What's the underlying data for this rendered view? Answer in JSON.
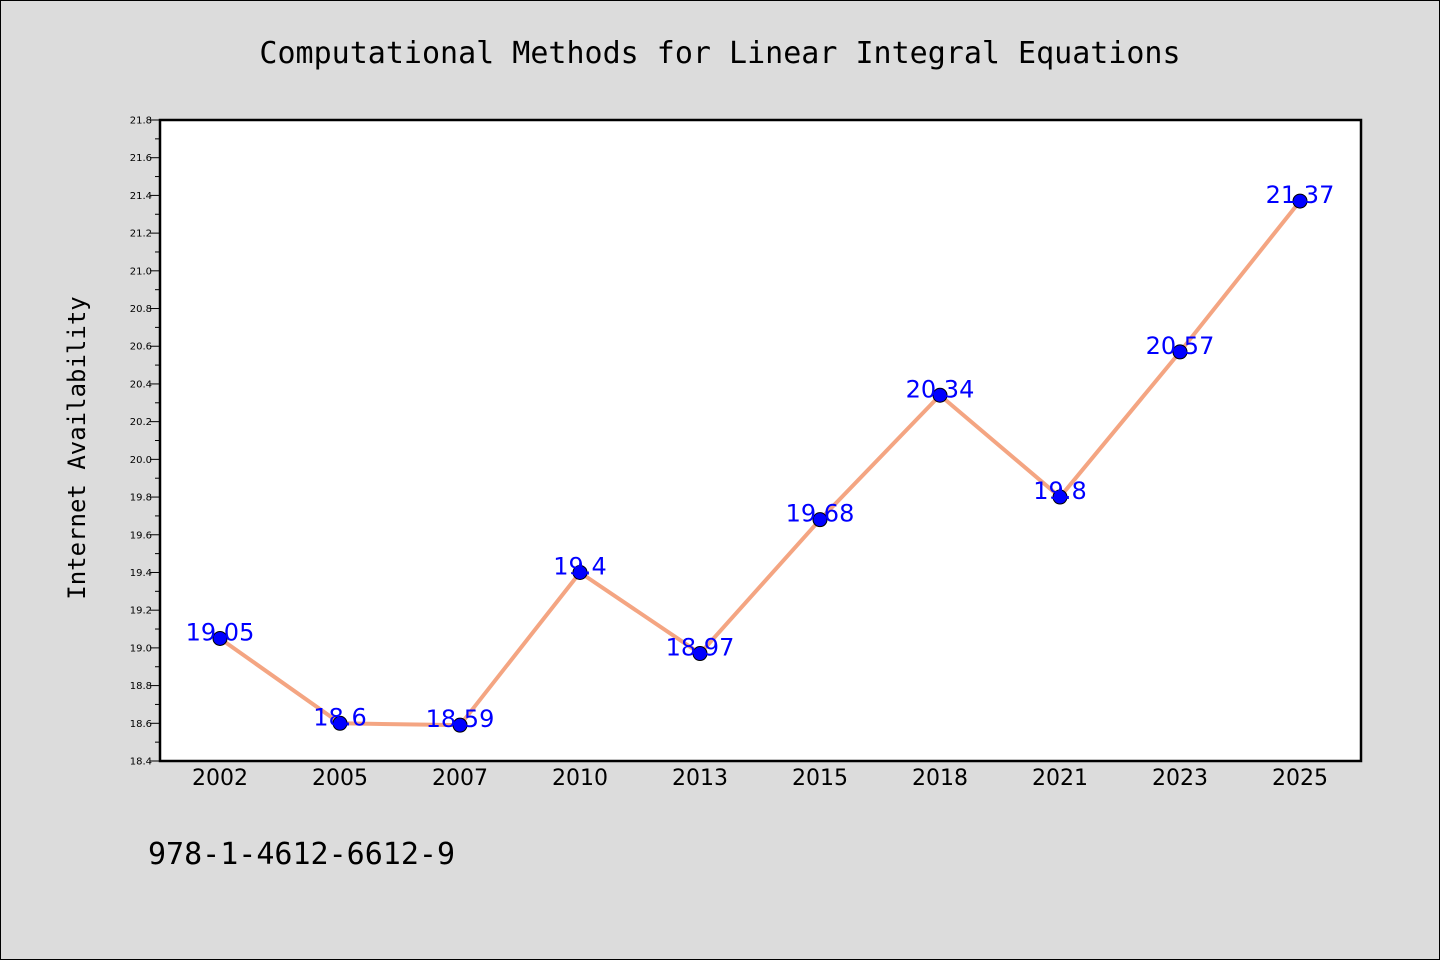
{
  "chart_data": {
    "type": "line",
    "title": "Computational Methods for Linear Integral Equations",
    "ylabel": "Internet Availability",
    "xlabel": "",
    "categories": [
      "2002",
      "2005",
      "2007",
      "2010",
      "2013",
      "2015",
      "2018",
      "2021",
      "2023",
      "2025"
    ],
    "values": [
      19.05,
      18.6,
      18.59,
      19.4,
      18.97,
      19.68,
      20.34,
      19.8,
      20.57,
      21.37
    ],
    "data_labels": [
      "19.05",
      "18.6",
      "18.59",
      "19.4",
      "18.97",
      "19.68",
      "20.34",
      "19.8",
      "20.57",
      "21.37"
    ],
    "ylim": [
      18.4,
      21.8
    ],
    "yticks": [
      "18.4",
      "18.6",
      "18.8",
      "19.0",
      "19.2",
      "19.4",
      "19.6",
      "19.8",
      "20.0",
      "20.2",
      "20.4",
      "20.6",
      "20.8",
      "21.0",
      "21.2",
      "21.4",
      "21.6",
      "21.8"
    ],
    "grid": false,
    "line_color": "#f4a582",
    "marker_color": "#0000ff",
    "label_color": "#0000ff"
  },
  "footer": {
    "isbn": "978-1-4612-6612-9"
  }
}
